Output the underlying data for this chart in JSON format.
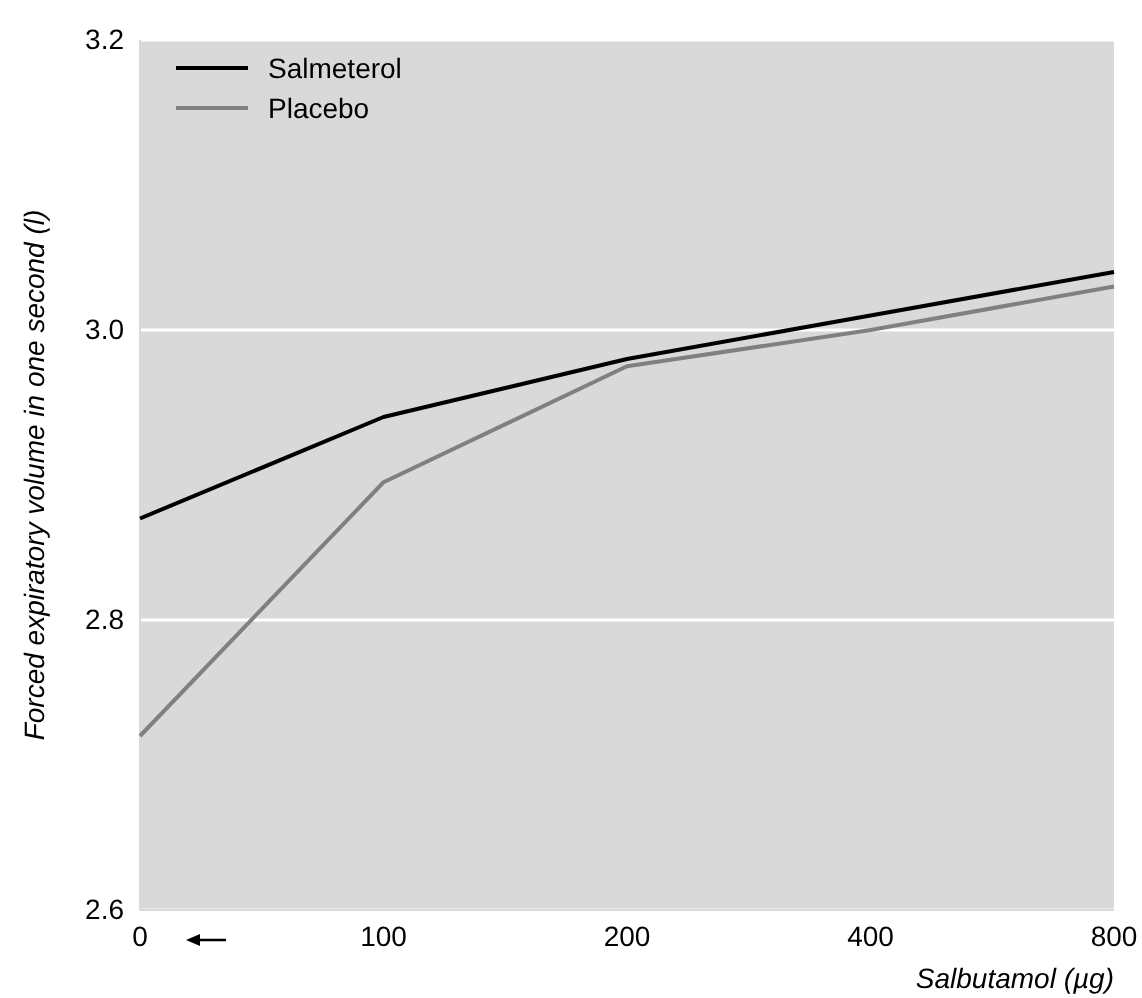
{
  "chart_data": {
    "type": "line",
    "xlabel": "Salbutamol (µg)",
    "ylabel": "Forced expiratory volume in one second (l)",
    "categories": [
      "0",
      "100",
      "200",
      "400",
      "800"
    ],
    "series": [
      {
        "name": "Salmeterol",
        "color": "#000000",
        "values": [
          2.87,
          2.94,
          2.98,
          3.01,
          3.04
        ]
      },
      {
        "name": "Placebo",
        "color": "#808080",
        "values": [
          2.72,
          2.895,
          2.975,
          3.0,
          3.03
        ]
      }
    ],
    "ylim": [
      2.6,
      3.2
    ],
    "yticks": [
      {
        "value": 2.6,
        "label": "2.6"
      },
      {
        "value": 2.8,
        "label": "2.8"
      },
      {
        "value": 3.0,
        "label": "3.0"
      },
      {
        "value": 3.2,
        "label": "3.2"
      }
    ],
    "grid": "y",
    "legend": "top left",
    "marker": "none",
    "line_style": "solid"
  }
}
